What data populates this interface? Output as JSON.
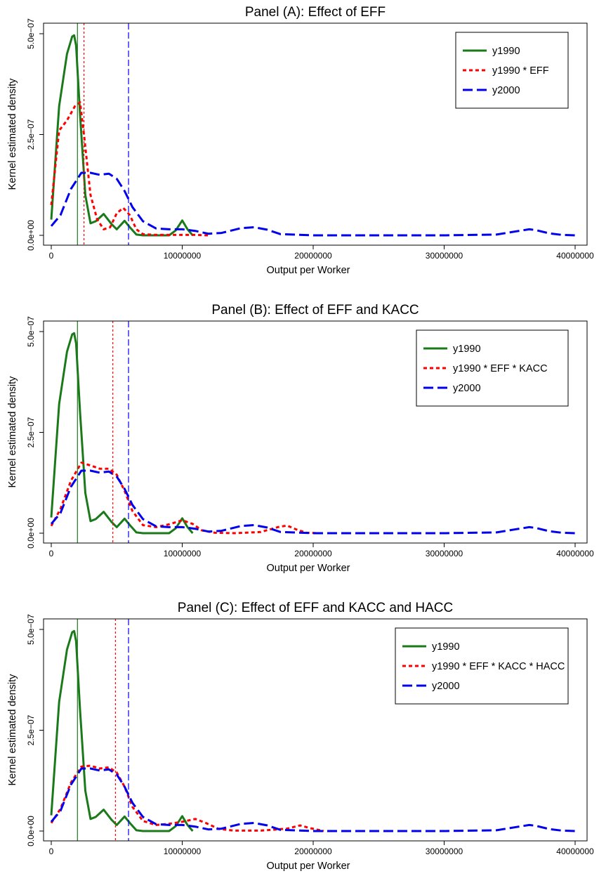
{
  "colors": {
    "y1990": "#1a7a1a",
    "counterfactual": "#ff0000",
    "y2000": "#0000ee",
    "frame": "#000000"
  },
  "chart_data": [
    {
      "type": "line",
      "title": "Panel (A): Effect of EFF",
      "xlabel": "Output per Worker",
      "ylabel": "Kernel estimated density",
      "xlim": [
        0,
        40000000
      ],
      "ylim": [
        0,
        5e-07
      ],
      "xticks": [
        0,
        10000000,
        20000000,
        30000000,
        40000000
      ],
      "xtick_labels": [
        "0",
        "10000000",
        "20000000",
        "30000000",
        "40000000"
      ],
      "yticks": [
        0,
        2.5e-07,
        5e-07
      ],
      "ytick_labels": [
        "0.0e+00",
        "2.5e−07",
        "5.0e−07"
      ],
      "legend_position": "top-right",
      "series": [
        {
          "name": "y1990",
          "key": "y1990",
          "style": "solid",
          "mean": 2000000,
          "x": [
            0,
            600000,
            1200000,
            1600000,
            1750000,
            1900000,
            2200000,
            2600000,
            3000000,
            3400000,
            4000000,
            4600000,
            5000000,
            5600000,
            6000000,
            6500000,
            7000000,
            9000000,
            9500000,
            10000000,
            10400000,
            10800000
          ],
          "y": [
            3.9e-08,
            3.2e-07,
            4.5e-07,
            4.93e-07,
            4.96e-07,
            4.7e-07,
            3e-07,
            1e-07,
            3e-08,
            3.5e-08,
            5.3e-08,
            2.8e-08,
            1.5e-08,
            3.6e-08,
            2e-08,
            2e-09,
            0,
            0,
            1.2e-08,
            3.7e-08,
            1.5e-08,
            0
          ]
        },
        {
          "name": "y1990 * EFF",
          "key": "counterfactual",
          "style": "dotted",
          "mean": 2500000,
          "x": [
            0,
            600000,
            1200000,
            1800000,
            2200000,
            2500000,
            3000000,
            3500000,
            4000000,
            4500000,
            5000000,
            5500000,
            6000000,
            6500000,
            7000000,
            8000000,
            10000000,
            11000000,
            12000000
          ],
          "y": [
            7.5e-08,
            2.6e-07,
            2.85e-07,
            3.2e-07,
            3.3e-07,
            2.5e-07,
            1e-07,
            4e-08,
            1.5e-08,
            2e-08,
            5.5e-08,
            6.8e-08,
            5e-08,
            1.5e-08,
            3e-09,
            1e-09,
            1e-09,
            1e-09,
            0
          ]
        },
        {
          "name": "y2000",
          "key": "y2000",
          "style": "dashed",
          "mean": 5900000,
          "x": [
            0,
            700000,
            1500000,
            2300000,
            3000000,
            3700000,
            4400000,
            5000000,
            5600000,
            6200000,
            7000000,
            8000000,
            9000000,
            10000000,
            11000000,
            12000000,
            13000000,
            14500000,
            15500000,
            16500000,
            17500000,
            20000000,
            30000000,
            34000000,
            35500000,
            36500000,
            37000000,
            38000000,
            39000000,
            40000000
          ],
          "y": [
            2.3e-08,
            5e-08,
            1.15e-07,
            1.55e-07,
            1.55e-07,
            1.5e-07,
            1.53e-07,
            1.4e-07,
            1.1e-07,
            7e-08,
            3.5e-08,
            1.7e-08,
            1.5e-08,
            1.5e-08,
            1.1e-08,
            4e-09,
            6e-09,
            1.8e-08,
            2e-08,
            1.4e-08,
            3e-09,
            0,
            0,
            2e-09,
            1e-08,
            1.5e-08,
            1.3e-08,
            5e-09,
            1e-09,
            0
          ]
        }
      ]
    },
    {
      "type": "line",
      "title": "Panel (B): Effect of EFF and KACC",
      "xlabel": "Output per Worker",
      "ylabel": "Kernel estimated density",
      "xlim": [
        0,
        40000000
      ],
      "ylim": [
        0,
        5e-07
      ],
      "xticks": [
        0,
        10000000,
        20000000,
        30000000,
        40000000
      ],
      "xtick_labels": [
        "0",
        "10000000",
        "20000000",
        "30000000",
        "40000000"
      ],
      "yticks": [
        0,
        2.5e-07,
        5e-07
      ],
      "ytick_labels": [
        "0.0e+00",
        "2.5e−07",
        "5.0e−07"
      ],
      "legend_position": "top-right",
      "series": [
        {
          "name": "y1990",
          "key": "y1990",
          "style": "solid",
          "mean": 2000000,
          "x": [
            0,
            600000,
            1200000,
            1600000,
            1750000,
            1900000,
            2200000,
            2600000,
            3000000,
            3400000,
            4000000,
            4600000,
            5000000,
            5600000,
            6000000,
            6500000,
            7000000,
            9000000,
            9500000,
            10000000,
            10400000,
            10800000
          ],
          "y": [
            3.9e-08,
            3.2e-07,
            4.5e-07,
            4.93e-07,
            4.96e-07,
            4.7e-07,
            3e-07,
            1e-07,
            3e-08,
            3.5e-08,
            5.3e-08,
            2.8e-08,
            1.5e-08,
            3.6e-08,
            2e-08,
            2e-09,
            0,
            0,
            1.2e-08,
            3.7e-08,
            1.5e-08,
            0
          ]
        },
        {
          "name": "y1990 * EFF * KACC",
          "key": "counterfactual",
          "style": "dotted",
          "mean": 4700000,
          "x": [
            0,
            700000,
            1500000,
            2300000,
            3000000,
            3700000,
            4400000,
            5000000,
            5600000,
            6200000,
            7000000,
            8000000,
            9000000,
            10000000,
            10800000,
            11500000,
            12500000,
            14000000,
            16000000,
            17300000,
            18000000,
            18800000,
            19500000,
            20500000
          ],
          "y": [
            1.8e-08,
            6e-08,
            1.3e-07,
            1.75e-07,
            1.68e-07,
            1.6e-07,
            1.6e-07,
            1.45e-07,
            1.05e-07,
            5.5e-08,
            2e-08,
            1.5e-08,
            2.2e-08,
            3.2e-08,
            2.3e-08,
            7e-09,
            1e-09,
            0,
            3e-09,
            1.5e-08,
            1.9e-08,
            8e-09,
            1e-09,
            0
          ]
        },
        {
          "name": "y2000",
          "key": "y2000",
          "style": "dashed",
          "mean": 5900000,
          "x": [
            0,
            700000,
            1500000,
            2300000,
            3000000,
            3700000,
            4400000,
            5000000,
            5600000,
            6200000,
            7000000,
            8000000,
            9000000,
            10000000,
            11000000,
            12000000,
            13000000,
            14500000,
            15500000,
            16500000,
            17500000,
            20000000,
            30000000,
            34000000,
            35500000,
            36500000,
            37000000,
            38000000,
            39000000,
            40000000
          ],
          "y": [
            2.3e-08,
            5e-08,
            1.15e-07,
            1.55e-07,
            1.55e-07,
            1.5e-07,
            1.53e-07,
            1.4e-07,
            1.1e-07,
            7e-08,
            3.5e-08,
            1.7e-08,
            1.5e-08,
            1.5e-08,
            1.1e-08,
            4e-09,
            6e-09,
            1.8e-08,
            2e-08,
            1.4e-08,
            3e-09,
            0,
            0,
            2e-09,
            1e-08,
            1.5e-08,
            1.3e-08,
            5e-09,
            1e-09,
            0
          ]
        }
      ]
    },
    {
      "type": "line",
      "title": "Panel (C): Effect of EFF and KACC and HACC",
      "xlabel": "Output per Worker",
      "ylabel": "Kernel estimated density",
      "xlim": [
        0,
        40000000
      ],
      "ylim": [
        0,
        5e-07
      ],
      "xticks": [
        0,
        10000000,
        20000000,
        30000000,
        40000000
      ],
      "xtick_labels": [
        "0",
        "10000000",
        "20000000",
        "30000000",
        "40000000"
      ],
      "yticks": [
        0,
        2.5e-07,
        5e-07
      ],
      "ytick_labels": [
        "0.0e+00",
        "2.5e−07",
        "5.0e−07"
      ],
      "legend_position": "top-right",
      "series": [
        {
          "name": "y1990",
          "key": "y1990",
          "style": "solid",
          "mean": 2000000,
          "x": [
            0,
            600000,
            1200000,
            1600000,
            1750000,
            1900000,
            2200000,
            2600000,
            3000000,
            3400000,
            4000000,
            4600000,
            5000000,
            5600000,
            6000000,
            6500000,
            7000000,
            9000000,
            9500000,
            10000000,
            10400000,
            10800000
          ],
          "y": [
            3.9e-08,
            3.2e-07,
            4.5e-07,
            4.93e-07,
            4.96e-07,
            4.7e-07,
            3e-07,
            1e-07,
            3e-08,
            3.5e-08,
            5.3e-08,
            2.8e-08,
            1.5e-08,
            3.6e-08,
            2e-08,
            2e-09,
            0,
            0,
            1.2e-08,
            3.7e-08,
            1.5e-08,
            0
          ]
        },
        {
          "name": "y1990 * EFF * KACC * HACC",
          "key": "counterfactual",
          "style": "dotted",
          "mean": 4900000,
          "x": [
            0,
            700000,
            1500000,
            2300000,
            3000000,
            3700000,
            4400000,
            5000000,
            5600000,
            6200000,
            7000000,
            8000000,
            9000000,
            10000000,
            11000000,
            11800000,
            12800000,
            14000000,
            16000000,
            18000000,
            19000000,
            19800000,
            20800000
          ],
          "y": [
            2e-08,
            5.5e-08,
            1.2e-07,
            1.6e-07,
            1.62e-07,
            1.55e-07,
            1.58e-07,
            1.45e-07,
            1.1e-07,
            6e-08,
            2.5e-08,
            1.5e-08,
            1.8e-08,
            2.3e-08,
            3e-08,
            2e-08,
            5e-09,
            1e-09,
            1e-09,
            6e-09,
            1.4e-08,
            7e-09,
            0
          ]
        },
        {
          "name": "y2000",
          "key": "y2000",
          "style": "dashed",
          "mean": 5900000,
          "x": [
            0,
            700000,
            1500000,
            2300000,
            3000000,
            3700000,
            4400000,
            5000000,
            5600000,
            6200000,
            7000000,
            8000000,
            9000000,
            10000000,
            11000000,
            12000000,
            13000000,
            14500000,
            15500000,
            16500000,
            17500000,
            20000000,
            30000000,
            34000000,
            35500000,
            36500000,
            37000000,
            38000000,
            39000000,
            40000000
          ],
          "y": [
            2.3e-08,
            5e-08,
            1.15e-07,
            1.55e-07,
            1.55e-07,
            1.5e-07,
            1.53e-07,
            1.4e-07,
            1.1e-07,
            7e-08,
            3.5e-08,
            1.7e-08,
            1.5e-08,
            1.5e-08,
            1.1e-08,
            4e-09,
            6e-09,
            1.8e-08,
            2e-08,
            1.4e-08,
            3e-09,
            0,
            0,
            2e-09,
            1e-08,
            1.5e-08,
            1.3e-08,
            5e-09,
            1e-09,
            0
          ]
        }
      ]
    }
  ]
}
